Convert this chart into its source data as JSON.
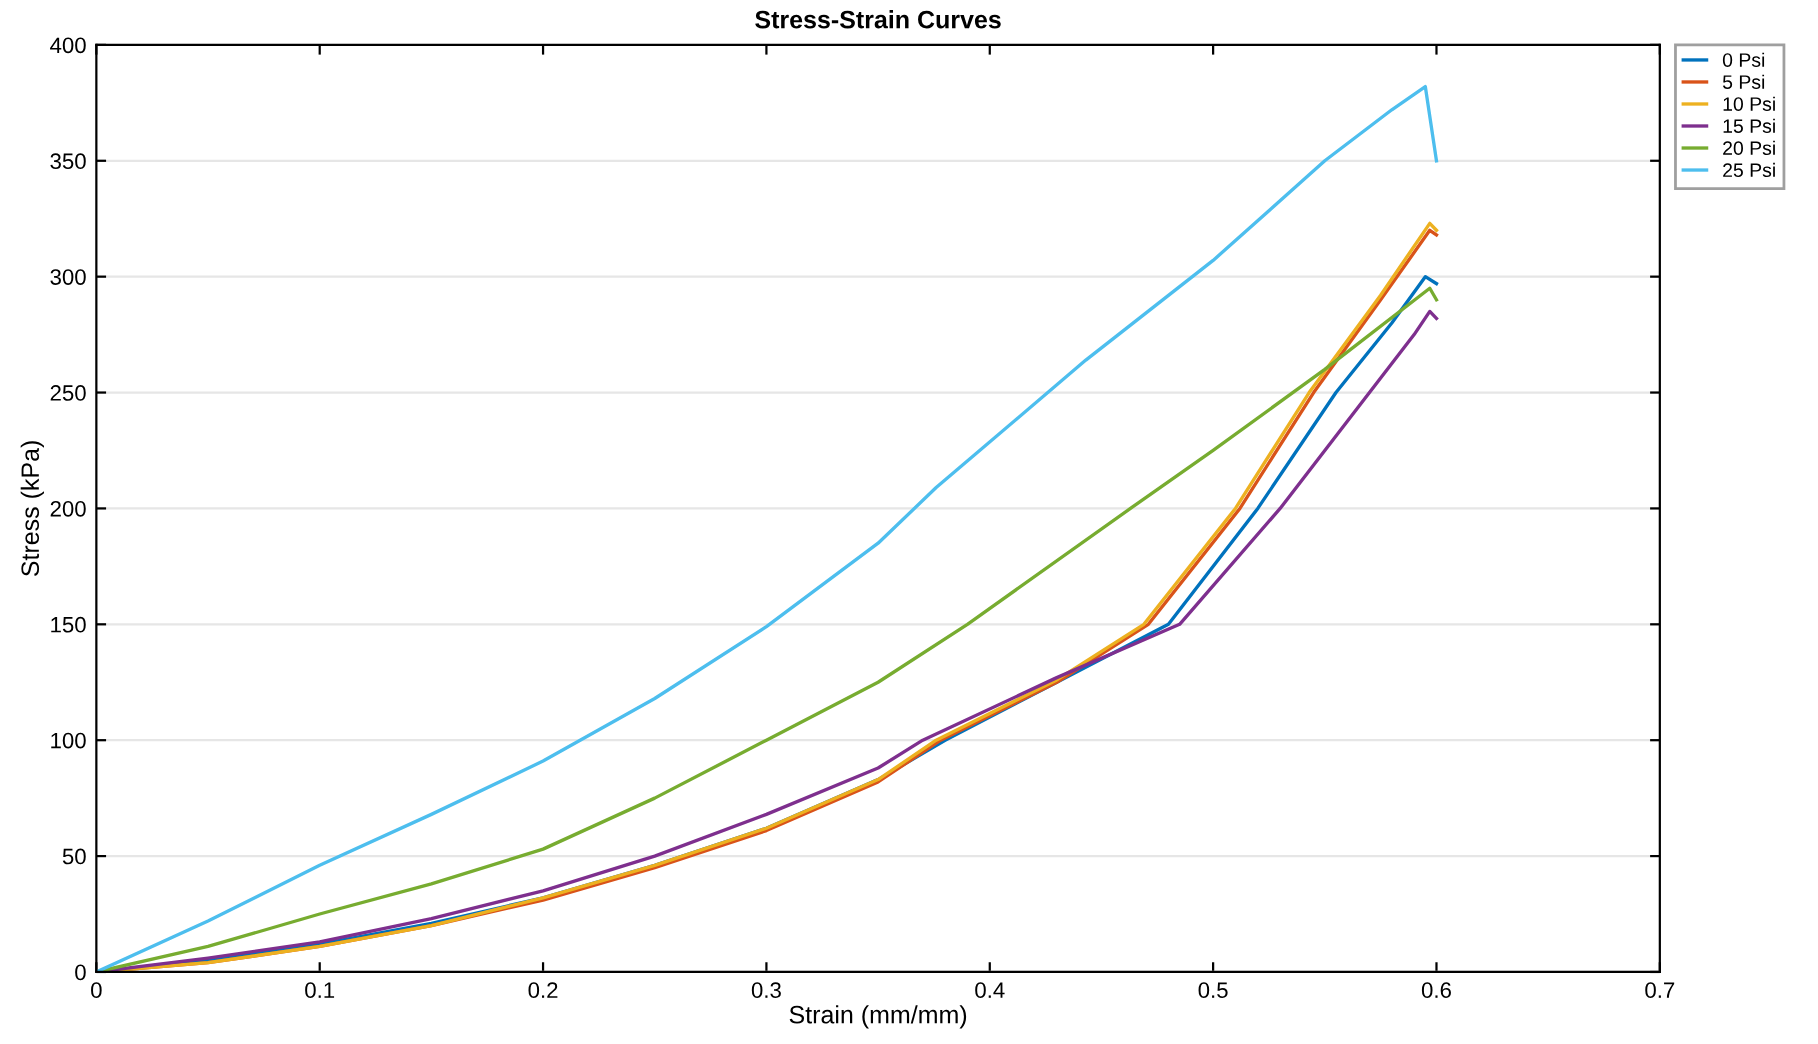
{
  "chart_data": {
    "type": "line",
    "title": "Stress-Strain Curves",
    "xlabel": "Strain (mm/mm)",
    "ylabel": "Stress (kPa)",
    "xlim": [
      0,
      0.7
    ],
    "ylim": [
      0,
      400
    ],
    "xticks": [
      0,
      0.1,
      0.2,
      0.3,
      0.4,
      0.5,
      0.6,
      0.7
    ],
    "yticks": [
      0,
      50,
      100,
      150,
      200,
      250,
      300,
      350,
      400
    ],
    "grid": "y",
    "legend": "top right",
    "series": [
      {
        "name": "0 Psi",
        "color": "#0072bd",
        "x": [
          0,
          0.05,
          0.1,
          0.15,
          0.2,
          0.25,
          0.3,
          0.35,
          0.38,
          0.43,
          0.48,
          0.52,
          0.555,
          0.58,
          0.595,
          0.6
        ],
        "values": [
          0,
          5,
          12,
          21,
          32,
          46,
          62,
          83,
          100,
          125,
          150,
          200,
          250,
          280,
          300,
          297
        ]
      },
      {
        "name": "5 Psi",
        "color": "#d95319",
        "x": [
          0,
          0.05,
          0.1,
          0.15,
          0.2,
          0.25,
          0.3,
          0.35,
          0.378,
          0.43,
          0.471,
          0.512,
          0.545,
          0.575,
          0.597,
          0.6
        ],
        "values": [
          0,
          4,
          11,
          20,
          31,
          45,
          61,
          82,
          100,
          125,
          150,
          200,
          250,
          290,
          320,
          318
        ]
      },
      {
        "name": "10 Psi",
        "color": "#edb120",
        "x": [
          0,
          0.05,
          0.1,
          0.15,
          0.2,
          0.25,
          0.3,
          0.35,
          0.376,
          0.43,
          0.469,
          0.51,
          0.543,
          0.575,
          0.597,
          0.6
        ],
        "values": [
          0,
          4,
          11,
          20,
          32,
          46,
          62,
          83,
          100,
          126,
          150,
          200,
          250,
          292,
          323,
          320
        ]
      },
      {
        "name": "15 Psi",
        "color": "#7e2f8e",
        "x": [
          0,
          0.05,
          0.1,
          0.15,
          0.2,
          0.25,
          0.3,
          0.35,
          0.37,
          0.43,
          0.485,
          0.53,
          0.57,
          0.59,
          0.597,
          0.6
        ],
        "values": [
          0,
          6,
          13,
          23,
          35,
          50,
          68,
          88,
          100,
          127,
          150,
          200,
          250,
          275,
          285,
          282
        ]
      },
      {
        "name": "20 Psi",
        "color": "#77ac30",
        "x": [
          0,
          0.05,
          0.1,
          0.15,
          0.2,
          0.25,
          0.3,
          0.35,
          0.39,
          0.463,
          0.5,
          0.55,
          0.597,
          0.6
        ],
        "values": [
          0,
          11,
          25,
          38,
          53,
          75,
          100,
          125,
          150,
          200,
          225,
          260,
          295,
          290
        ]
      },
      {
        "name": "25 Psi",
        "color": "#4dbeee",
        "x": [
          0,
          0.05,
          0.1,
          0.15,
          0.2,
          0.25,
          0.3,
          0.35,
          0.376,
          0.443,
          0.5,
          0.55,
          0.58,
          0.595,
          0.6
        ],
        "values": [
          0,
          22,
          46,
          68,
          91,
          118,
          149,
          185,
          209,
          264,
          307,
          350,
          372,
          382,
          350
        ]
      }
    ]
  }
}
